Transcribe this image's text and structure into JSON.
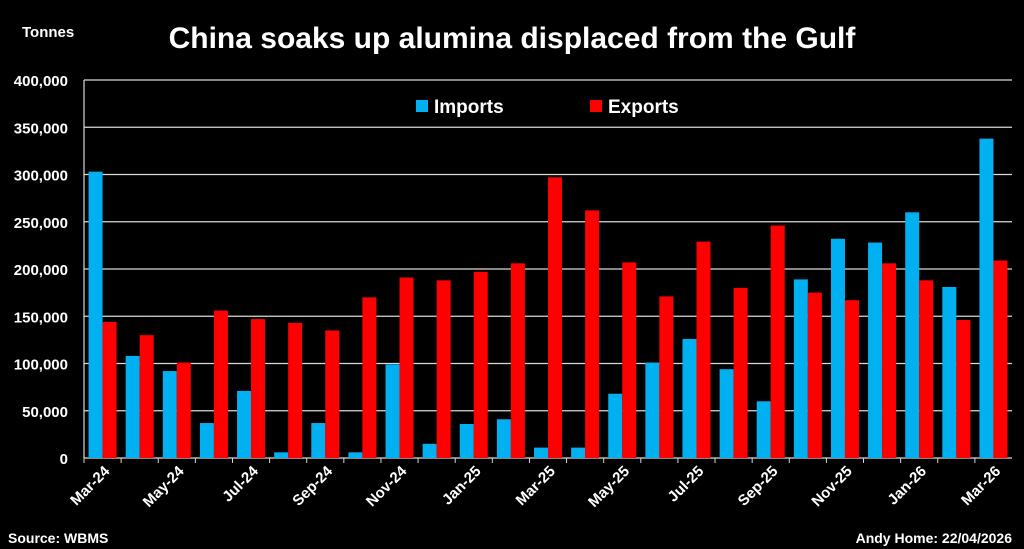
{
  "chart_data": {
    "type": "bar",
    "title": "China soaks up alumina displaced from the Gulf",
    "ylabel": "Tonnes",
    "ylim": [
      0,
      400000
    ],
    "yticks": [
      0,
      50000,
      100000,
      150000,
      200000,
      250000,
      300000,
      350000,
      400000
    ],
    "ytick_labels": [
      "0",
      "50,000",
      "100,000",
      "150,000",
      "200,000",
      "250,000",
      "300,000",
      "350,000",
      "400,000"
    ],
    "categories": [
      "Mar-24",
      "Apr-24",
      "May-24",
      "Jun-24",
      "Jul-24",
      "Aug-24",
      "Sep-24",
      "Oct-24",
      "Nov-24",
      "Dec-24",
      "Jan-25",
      "Feb-25",
      "Mar-25",
      "Apr-25",
      "May-25",
      "Jun-25",
      "Jul-25",
      "Aug-25",
      "Sep-25",
      "Oct-25",
      "Nov-25",
      "Dec-25",
      "Jan-26",
      "Feb-26",
      "Mar-26"
    ],
    "xtick_labels": [
      "Mar-24",
      "May-24",
      "Jul-24",
      "Sep-24",
      "Nov-24",
      "Jan-25",
      "Mar-25",
      "May-25",
      "Jul-25",
      "Sep-25",
      "Nov-25",
      "Jan-26",
      "Mar-26"
    ],
    "series": [
      {
        "name": "Imports",
        "color": "#00b0f0",
        "values": [
          303000,
          108000,
          92000,
          37000,
          71000,
          6000,
          37000,
          6000,
          99000,
          15000,
          36000,
          41000,
          11000,
          11000,
          68000,
          101000,
          126000,
          94000,
          60000,
          189000,
          232000,
          228000,
          260000,
          181000,
          338000
        ]
      },
      {
        "name": "Exports",
        "color": "#ff0000",
        "values": [
          144000,
          130000,
          101000,
          156000,
          147000,
          143000,
          135000,
          170000,
          191000,
          188000,
          197000,
          206000,
          297000,
          262000,
          207000,
          171000,
          229000,
          180000,
          246000,
          175000,
          167000,
          206000,
          188000,
          146000,
          209000
        ]
      }
    ],
    "grid": true,
    "legend_position": "top-center"
  },
  "labels": {
    "title": "China soaks up alumina displaced from the Gulf",
    "units": "Tonnes",
    "source": "Source: WBMS",
    "credit": "Andy Home: 22/04/2026"
  }
}
